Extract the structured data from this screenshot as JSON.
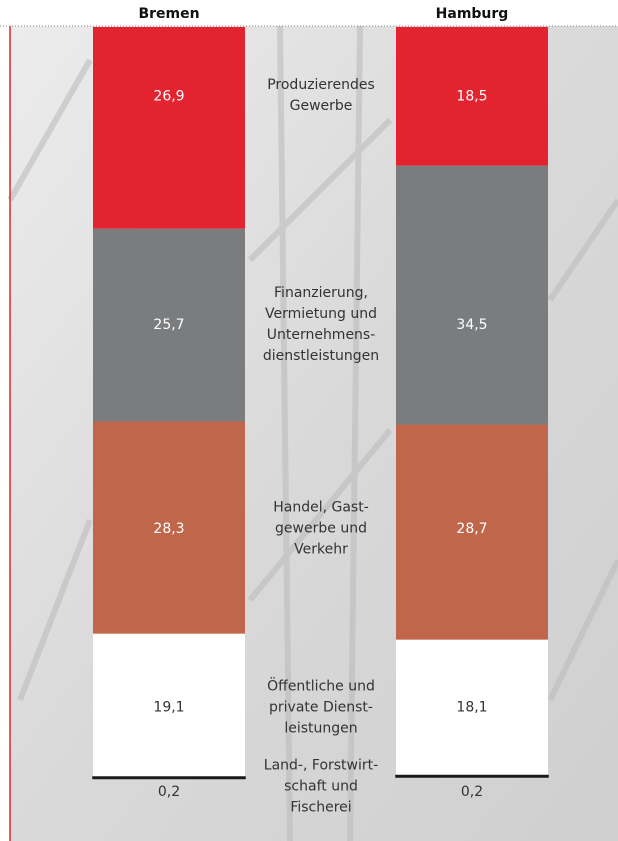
{
  "chart_data": {
    "type": "bar",
    "stacked": true,
    "categories": [
      "Bremen",
      "Hamburg"
    ],
    "series": [
      {
        "name": "Produzierendes\nGewerbe",
        "color": "#e3232f",
        "values": [
          26.9,
          18.5
        ],
        "value_labels": [
          "26,9",
          "18,5"
        ]
      },
      {
        "name": "Finanzierung,\nVermietung und\nUnternehmens-\ndienstleistungen",
        "color": "#7b7c7e",
        "values": [
          25.7,
          34.5
        ],
        "value_labels": [
          "25,7",
          "34,5"
        ]
      },
      {
        "name": "Handel, Gast-\ngewerbe und\nVerkehr",
        "color": "#c0674b",
        "values": [
          28.3,
          28.7
        ],
        "value_labels": [
          "28,3",
          "28,7"
        ]
      },
      {
        "name": "Öffentliche und\nprivate Dienst-\nleistungen",
        "color": "#ffffff",
        "values": [
          19.1,
          18.1
        ],
        "value_labels": [
          "19,1",
          "18,1"
        ]
      },
      {
        "name": "Land-, Forstwirt-\nschaft und\nFischerei",
        "color": "#1a1a1a",
        "values": [
          0.2,
          0.2
        ],
        "value_labels": [
          "0,2",
          "0,2"
        ]
      }
    ]
  }
}
